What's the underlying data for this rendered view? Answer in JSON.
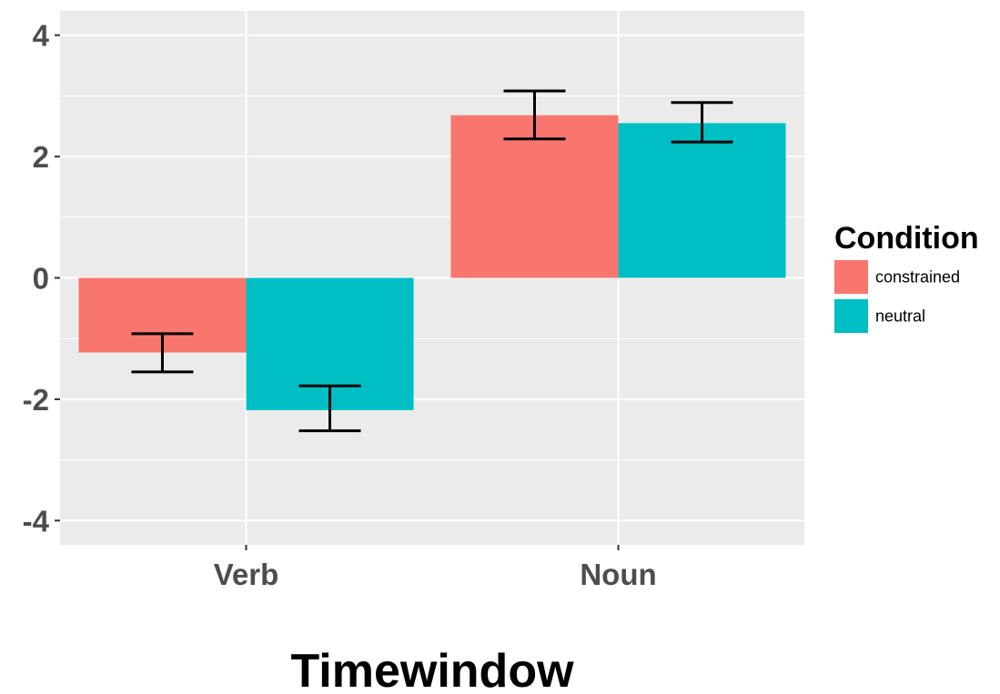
{
  "chart_data": {
    "type": "bar",
    "categories": [
      "Verb",
      "Noun"
    ],
    "series": [
      {
        "name": "constrained",
        "color": "#F8766D",
        "values": [
          -1.23,
          2.68
        ],
        "error_low": [
          -1.55,
          2.29
        ],
        "error_high": [
          -0.92,
          3.08
        ]
      },
      {
        "name": "neutral",
        "color": "#00BFC4",
        "values": [
          -2.18,
          2.55
        ],
        "error_low": [
          -2.52,
          2.24
        ],
        "error_high": [
          -1.78,
          2.89
        ]
      }
    ],
    "xlabel": "Timewindow",
    "ylabel": "",
    "ylim": [
      -4.4,
      4.4
    ],
    "yticks": [
      -4,
      -2,
      0,
      2,
      4
    ],
    "ytick_labels": [
      "-4",
      "-2",
      "0",
      "2",
      "4"
    ],
    "legend_title": "Condition",
    "legend_position": "right",
    "grid": true,
    "panel_background": "#EBEBEB"
  }
}
